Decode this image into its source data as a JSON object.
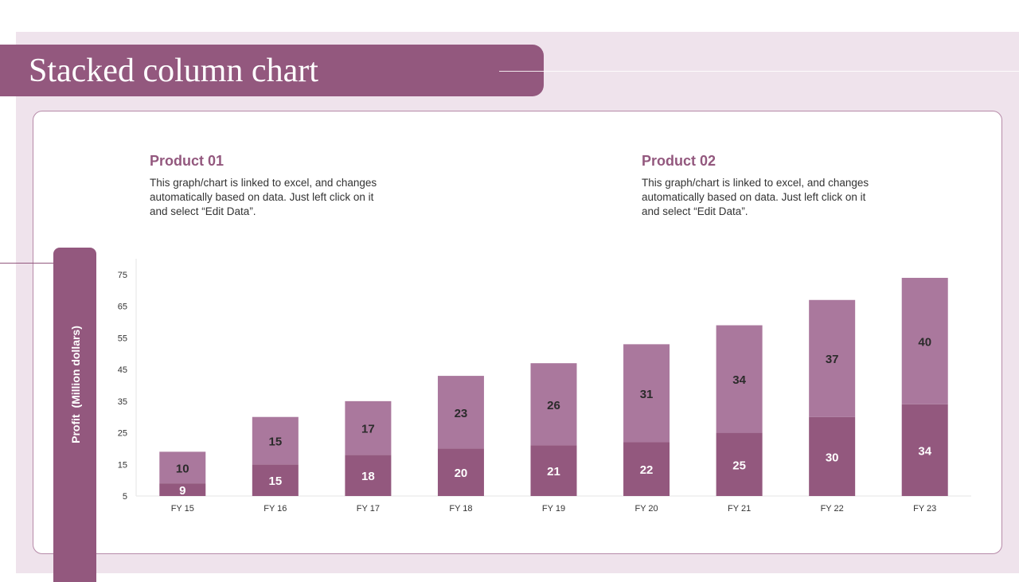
{
  "page": {
    "title": "Stacked column chart"
  },
  "products": [
    {
      "title": "Product 01",
      "description": "This graph/chart is linked to excel, and changes automatically based on data. Just left click on it and select “Edit Data”."
    },
    {
      "title": "Product 02",
      "description": "This graph/chart is linked to excel, and changes automatically based on data. Just left click on it and select “Edit Data”."
    }
  ],
  "colors": {
    "accent": "#93587e",
    "series1": "#93587e",
    "series2": "#aa789d",
    "background": "#efe3ec"
  },
  "chart_data": {
    "type": "bar",
    "stacked": true,
    "ylabel": "Profit  (Million dollars)",
    "ylim": [
      5,
      75
    ],
    "yticks": [
      "75",
      "65",
      "55",
      "45",
      "35",
      "25",
      "15",
      "5"
    ],
    "categories": [
      "FY 15",
      "FY 16",
      "FY 17",
      "FY 18",
      "FY 19",
      "FY 20",
      "FY 21",
      "FY 22",
      "FY 23"
    ],
    "series": [
      {
        "values": [
          9,
          15,
          18,
          20,
          21,
          22,
          25,
          30,
          34
        ]
      },
      {
        "values": [
          10,
          15,
          17,
          23,
          26,
          31,
          34,
          37,
          40
        ]
      }
    ],
    "grid": false,
    "legend": "none"
  }
}
